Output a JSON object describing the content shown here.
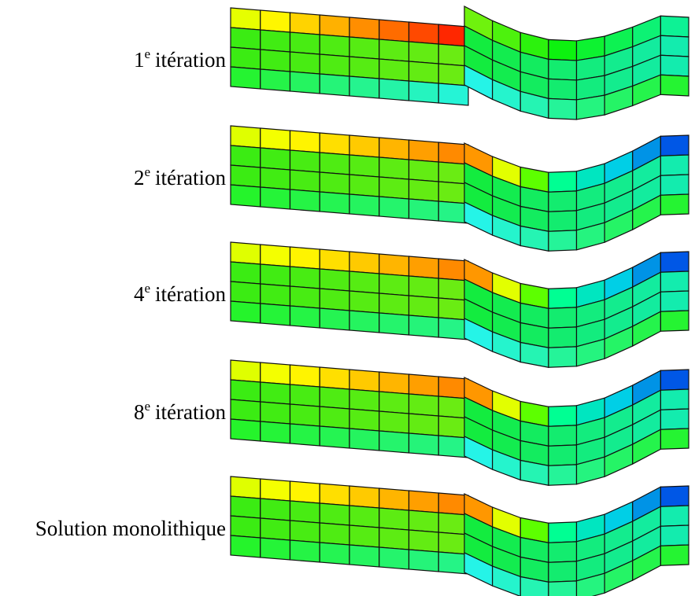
{
  "labels": [
    {
      "number": "1",
      "superscript": "e",
      "text": "itération"
    },
    {
      "number": "2",
      "superscript": "e",
      "text": "itération"
    },
    {
      "number": "4",
      "superscript": "e",
      "text": "itération"
    },
    {
      "number": "8",
      "superscript": "e",
      "text": "itération"
    },
    {
      "text": "Solution monolithique"
    }
  ]
}
